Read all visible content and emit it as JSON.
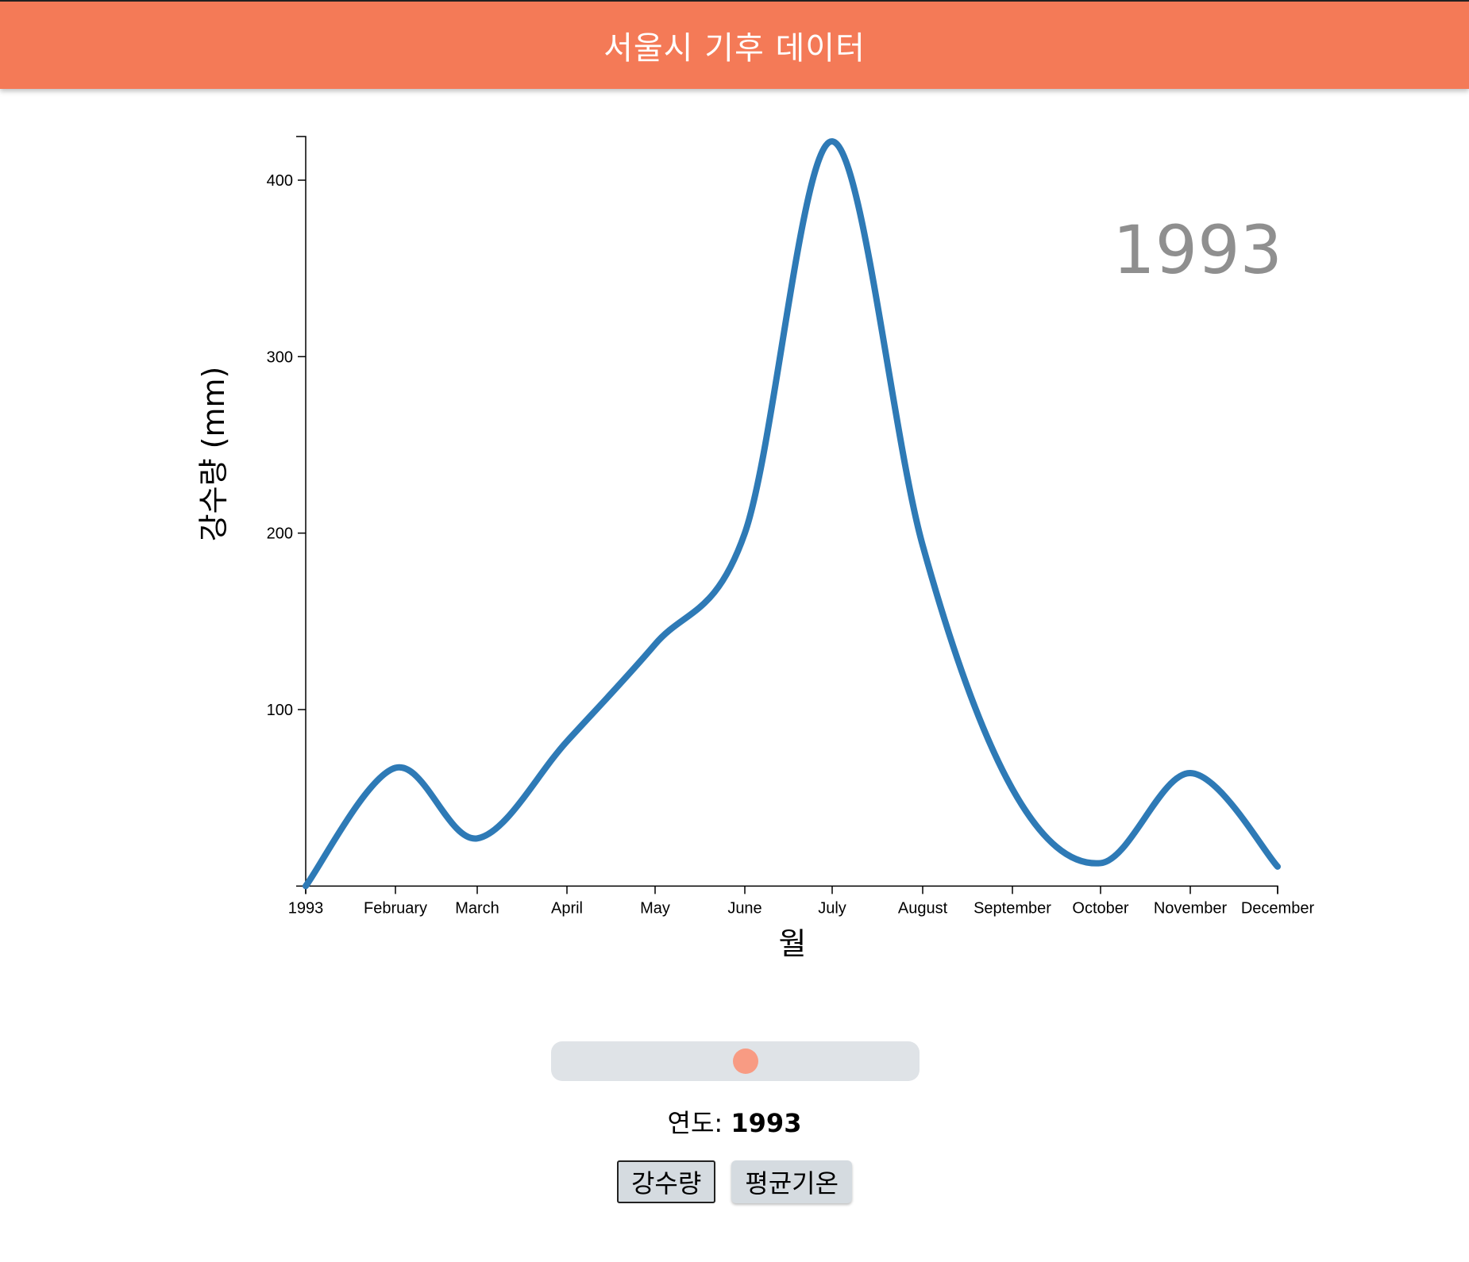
{
  "header": {
    "title": "서울시 기후 데이터"
  },
  "chart_data": {
    "type": "line",
    "year_label": "1993",
    "ylabel": "강수량 (mm)",
    "xlabel": "월",
    "x_tick_labels": [
      "1993",
      "February",
      "March",
      "April",
      "May",
      "June",
      "July",
      "August",
      "September",
      "October",
      "November",
      "December"
    ],
    "y_ticks": [
      100,
      200,
      300,
      400
    ],
    "ylim": [
      0,
      422
    ],
    "series": [
      {
        "values": [
          0,
          67,
          27,
          82,
          137,
          200,
          422,
          193,
          55,
          13,
          64,
          11
        ]
      }
    ],
    "line_color": "#2e7ab6"
  },
  "slider": {
    "value_fraction": 0.53
  },
  "year_display": {
    "label": "연도:",
    "value": "1993"
  },
  "buttons": [
    {
      "label": "강수량",
      "active": true
    },
    {
      "label": "평균기온",
      "active": false
    }
  ]
}
